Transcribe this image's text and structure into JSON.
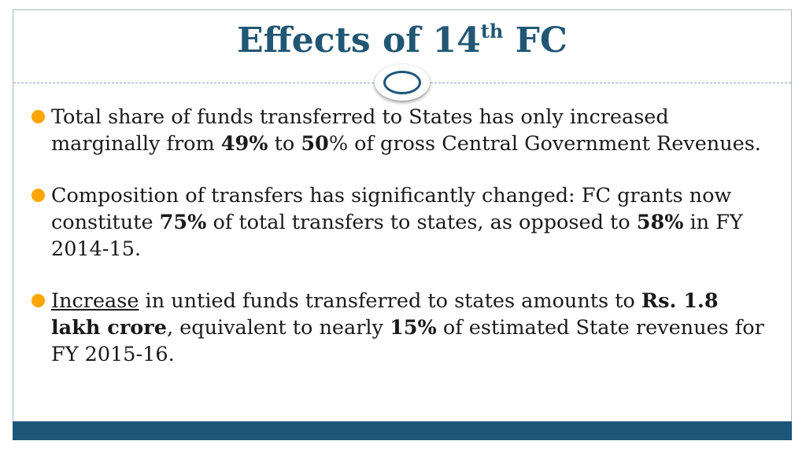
{
  "slide": {
    "title": {
      "main": "Effects of 14",
      "superscript": "th",
      "suffix": " FC"
    },
    "bullets": [
      {
        "parts": [
          {
            "text": "Total share of funds transferred to States has only increased marginally from ",
            "style": "normal"
          },
          {
            "text": "49%",
            "style": "bold"
          },
          {
            "text": " to ",
            "style": "normal"
          },
          {
            "text": "50",
            "style": "bold"
          },
          {
            "text": "% of gross Central Government Revenues.",
            "style": "normal"
          }
        ]
      },
      {
        "parts": [
          {
            "text": "Composition of transfers has significantly changed: FC grants now constitute ",
            "style": "normal"
          },
          {
            "text": "75%",
            "style": "bold"
          },
          {
            "text": " of total transfers to states, as opposed to ",
            "style": "normal"
          },
          {
            "text": "58%",
            "style": "bold"
          },
          {
            "text": " in FY 2014-15.",
            "style": "normal"
          }
        ]
      },
      {
        "parts": [
          {
            "text": "Increase",
            "style": "underline"
          },
          {
            "text": " in untied funds transferred to states amounts to ",
            "style": "normal"
          },
          {
            "text": "Rs. 1.8 lakh crore",
            "style": "bold"
          },
          {
            "text": ", equivalent to nearly ",
            "style": "normal"
          },
          {
            "text": "15%",
            "style": "bold"
          },
          {
            "text": " of estimated State revenues for FY 2015-16.",
            "style": "normal"
          }
        ]
      }
    ],
    "colors": {
      "title": "#215774",
      "bullet_dot": "#ffa500",
      "accent_bar": "#1c5679",
      "body_text": "#1a1a1a"
    },
    "icons": {
      "divider_ornament": "ring-icon",
      "bullet_marker": "bullet-dot-icon"
    }
  }
}
